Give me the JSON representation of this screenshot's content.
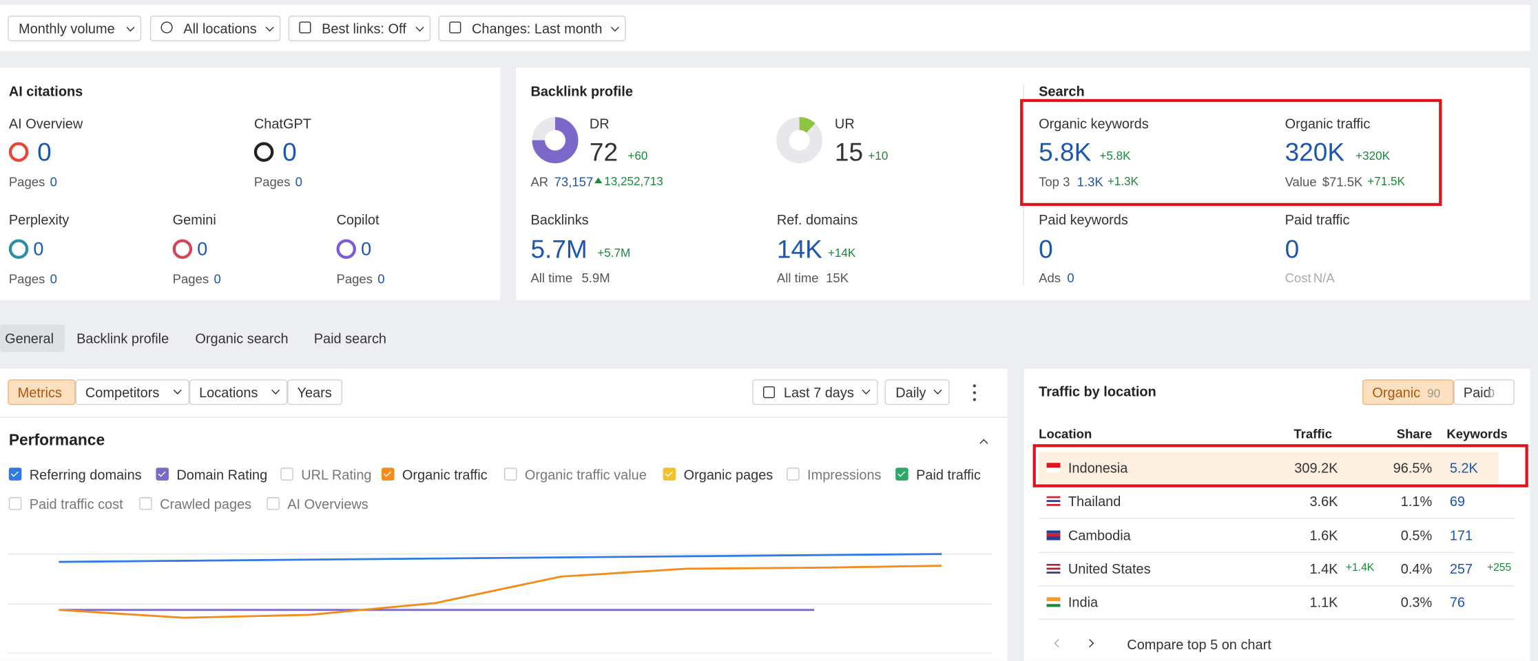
{
  "toolbar": [
    "Monthly volume",
    "All locations",
    "Best links: Off",
    "Changes: Last month"
  ],
  "ai_citations": {
    "title": "AI citations",
    "items": [
      {
        "name": "AI Overview",
        "value": "0",
        "pages_label": "Pages",
        "pages": "0"
      },
      {
        "name": "ChatGPT",
        "value": "0",
        "pages_label": "Pages",
        "pages": "0"
      },
      {
        "name": "Perplexity",
        "value": "0",
        "pages_label": "Pages",
        "pages": "0"
      },
      {
        "name": "Gemini",
        "value": "0",
        "pages_label": "Pages",
        "pages": "0"
      },
      {
        "name": "Copilot",
        "value": "0",
        "pages_label": "Pages",
        "pages": "0"
      }
    ]
  },
  "backlink_profile": {
    "title": "Backlink profile",
    "dr": {
      "label": "DR",
      "value": "72",
      "change": "+60",
      "sub_label": "AR",
      "sub": "73,157",
      "sub_change": "13,252,713"
    },
    "ur": {
      "label": "UR",
      "value": "15",
      "change": "+10"
    },
    "backlinks": {
      "label": "Backlinks",
      "value": "5.7M",
      "change": "+5.7M",
      "sub_label": "All time",
      "sub": "5.9M"
    },
    "ref_domains": {
      "label": "Ref. domains",
      "value": "14K",
      "change": "+14K",
      "sub_label": "All time",
      "sub": "15K"
    }
  },
  "search": {
    "title": "Search",
    "organic_keywords": {
      "label": "Organic keywords",
      "value": "5.8K",
      "change": "+5.8K",
      "sub_label": "Top 3",
      "sub": "1.3K",
      "sub_change": "+1.3K"
    },
    "organic_traffic": {
      "label": "Organic traffic",
      "value": "320K",
      "change": "+320K",
      "sub_label": "Value",
      "sub": "$71.5K",
      "sub_change": "+71.5K"
    },
    "paid_keywords": {
      "label": "Paid keywords",
      "value": "0",
      "sub_label": "Ads",
      "sub": "0"
    },
    "paid_traffic": {
      "label": "Paid traffic",
      "value": "0",
      "sub_label": "Cost",
      "sub": "N/A"
    }
  },
  "tabs": [
    "General",
    "Backlink profile",
    "Organic search",
    "Paid search"
  ],
  "chart_toolbar": {
    "buttons": [
      "Metrics",
      "Competitors",
      "Locations",
      "Years"
    ],
    "range": "Last 7 days",
    "interval": "Daily"
  },
  "performance": {
    "title": "Performance",
    "metrics": [
      {
        "label": "Referring domains",
        "checked": true,
        "color": "#2f7ae5"
      },
      {
        "label": "Domain Rating",
        "checked": true,
        "color": "#7b68c8"
      },
      {
        "label": "URL Rating",
        "checked": false
      },
      {
        "label": "Organic traffic",
        "checked": true,
        "color": "#f28c1b"
      },
      {
        "label": "Organic traffic value",
        "checked": false
      },
      {
        "label": "Organic pages",
        "checked": true,
        "color": "#f2c12e"
      },
      {
        "label": "Impressions",
        "checked": false
      },
      {
        "label": "Paid traffic",
        "checked": true,
        "color": "#2ea866"
      },
      {
        "label": "Paid traffic cost",
        "checked": false
      },
      {
        "label": "Crawled pages",
        "checked": false
      },
      {
        "label": "AI Overviews",
        "checked": false
      }
    ]
  },
  "traffic_by_location": {
    "title": "Traffic by location",
    "toggle": [
      {
        "label": "Organic",
        "count": "90"
      },
      {
        "label": "Paid",
        "count": "0"
      }
    ],
    "columns": [
      "Location",
      "Traffic",
      "Share",
      "Keywords"
    ],
    "rows": [
      {
        "location": "Indonesia",
        "traffic": "309.2K",
        "share": "96.5%",
        "keywords": "5.2K"
      },
      {
        "location": "Thailand",
        "traffic": "3.6K",
        "share": "1.1%",
        "keywords": "69"
      },
      {
        "location": "Cambodia",
        "traffic": "1.6K",
        "share": "0.5%",
        "keywords": "171"
      },
      {
        "location": "United States",
        "traffic": "1.4K",
        "traffic_change": "+1.4K",
        "share": "0.4%",
        "keywords": "257",
        "keywords_change": "+255"
      },
      {
        "location": "India",
        "traffic": "1.1K",
        "share": "0.3%",
        "keywords": "76"
      }
    ],
    "footer": "Compare top 5 on chart"
  }
}
